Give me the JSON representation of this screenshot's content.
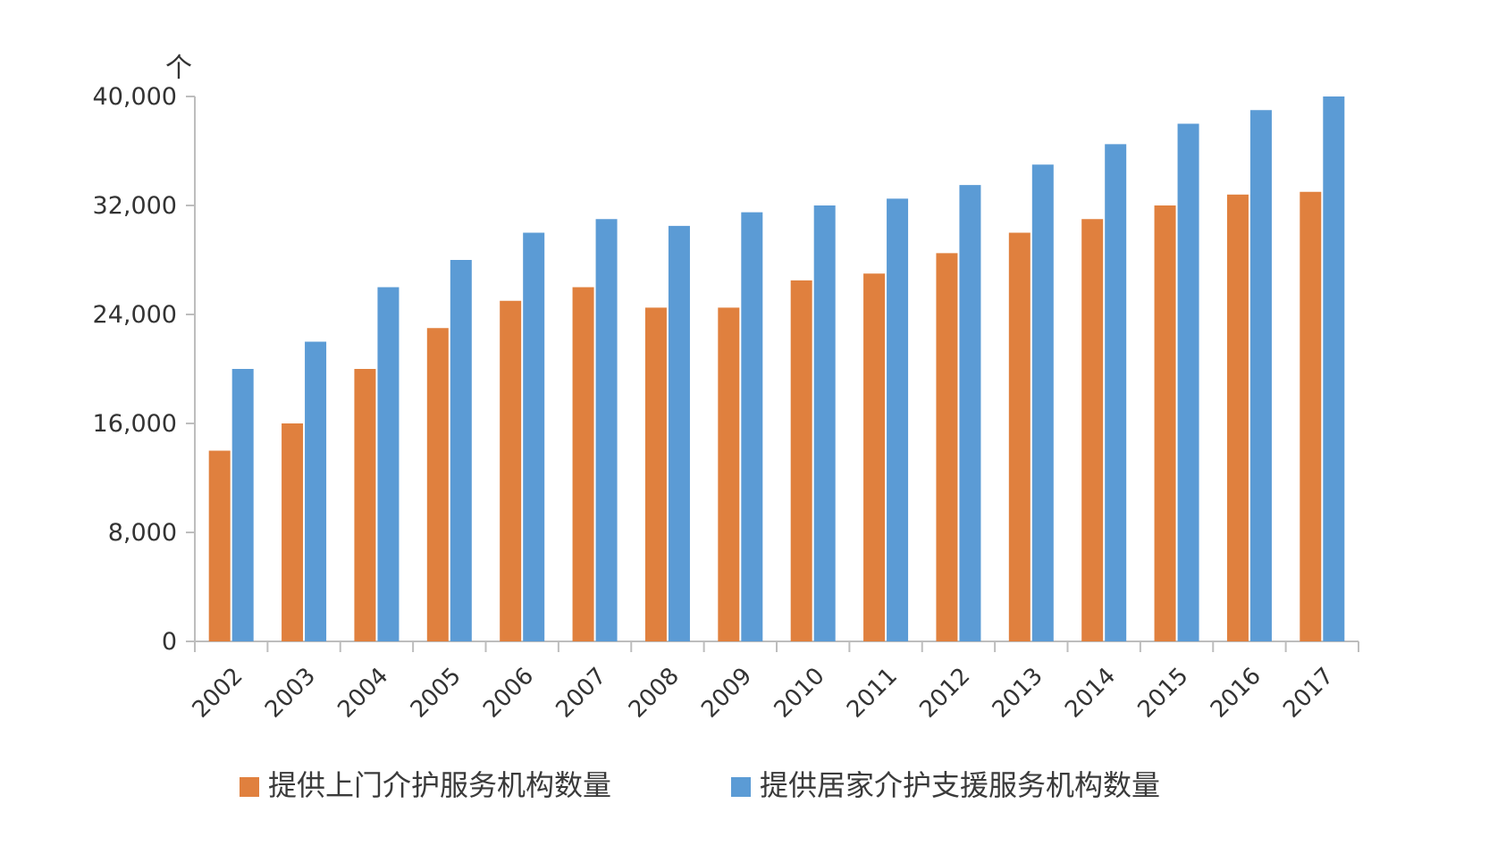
{
  "chart_data": {
    "type": "bar",
    "title": "",
    "xlabel": "",
    "ylabel": "",
    "unit": "个",
    "ylim": [
      0,
      40000
    ],
    "yticks": [
      0,
      8000,
      16000,
      24000,
      32000,
      40000
    ],
    "ytick_labels": [
      "0",
      "8,000",
      "16,000",
      "24,000",
      "32,000",
      "40,000"
    ],
    "grid": false,
    "legend_position": "bottom",
    "categories": [
      "2002",
      "2003",
      "2004",
      "2005",
      "2006",
      "2007",
      "2008",
      "2009",
      "2010",
      "2011",
      "2012",
      "2013",
      "2014",
      "2015",
      "2016",
      "2017"
    ],
    "series": [
      {
        "name": "提供上门介护服务机构数量",
        "color": "#E0803E",
        "values": [
          14000,
          16000,
          20000,
          23000,
          25000,
          26000,
          24500,
          24500,
          26500,
          27000,
          28500,
          30000,
          31000,
          32000,
          32800,
          33000
        ]
      },
      {
        "name": "提供居家介护支援服务机构数量",
        "color": "#5B9BD5",
        "values": [
          20000,
          22000,
          26000,
          28000,
          30000,
          31000,
          30500,
          31500,
          32000,
          32500,
          33500,
          35000,
          36500,
          38000,
          39000,
          40000
        ]
      }
    ]
  }
}
